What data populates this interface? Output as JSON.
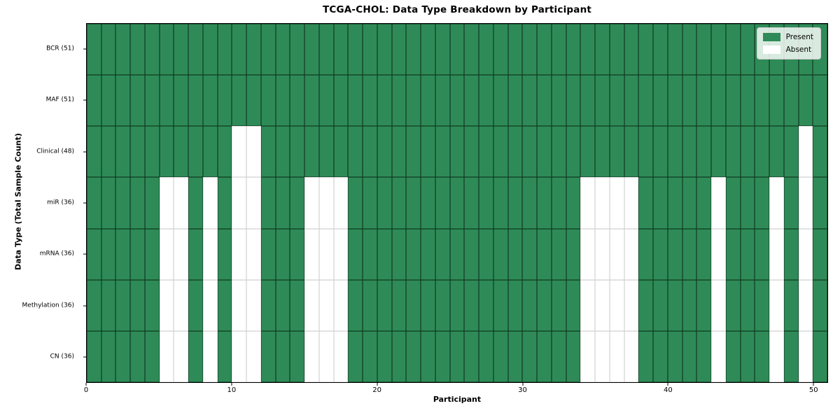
{
  "chart_data": {
    "type": "heatmap",
    "title": "TCGA-CHOL: Data Type Breakdown by Participant",
    "xlabel": "Participant",
    "ylabel": "Data Type (Total Sample Count)",
    "n_participants": 51,
    "xlim": [
      0,
      51
    ],
    "x_ticks": [
      0,
      10,
      20,
      30,
      40,
      50
    ],
    "grid": true,
    "legend_position": "upper right",
    "rows": [
      {
        "label": "BCR (51)",
        "data_type": "BCR",
        "present_count": 51,
        "absent_participants": []
      },
      {
        "label": "MAF (51)",
        "data_type": "MAF",
        "present_count": 51,
        "absent_participants": []
      },
      {
        "label": "Clinical (48)",
        "data_type": "Clinical",
        "present_count": 48,
        "absent_participants": [
          10,
          11,
          49
        ]
      },
      {
        "label": "miR (36)",
        "data_type": "miR",
        "present_count": 36,
        "absent_participants": [
          5,
          6,
          8,
          10,
          11,
          15,
          16,
          17,
          34,
          35,
          36,
          37,
          43,
          47,
          49
        ]
      },
      {
        "label": "mRNA (36)",
        "data_type": "mRNA",
        "present_count": 36,
        "absent_participants": [
          5,
          6,
          8,
          10,
          11,
          15,
          16,
          17,
          34,
          35,
          36,
          37,
          43,
          47,
          49
        ]
      },
      {
        "label": "Methylation (36)",
        "data_type": "Methylation",
        "present_count": 36,
        "absent_participants": [
          5,
          6,
          8,
          10,
          11,
          15,
          16,
          17,
          34,
          35,
          36,
          37,
          43,
          47,
          49
        ]
      },
      {
        "label": "CN (36)",
        "data_type": "CN",
        "present_count": 36,
        "absent_participants": [
          5,
          6,
          8,
          10,
          11,
          15,
          16,
          17,
          34,
          35,
          36,
          37,
          43,
          47,
          49
        ]
      }
    ],
    "legend": [
      {
        "label": "Present",
        "color": "#2e8b57"
      },
      {
        "label": "Absent",
        "color": "#ffffff"
      }
    ],
    "colors": {
      "present": "#2e8b57",
      "absent": "#ffffff"
    }
  }
}
